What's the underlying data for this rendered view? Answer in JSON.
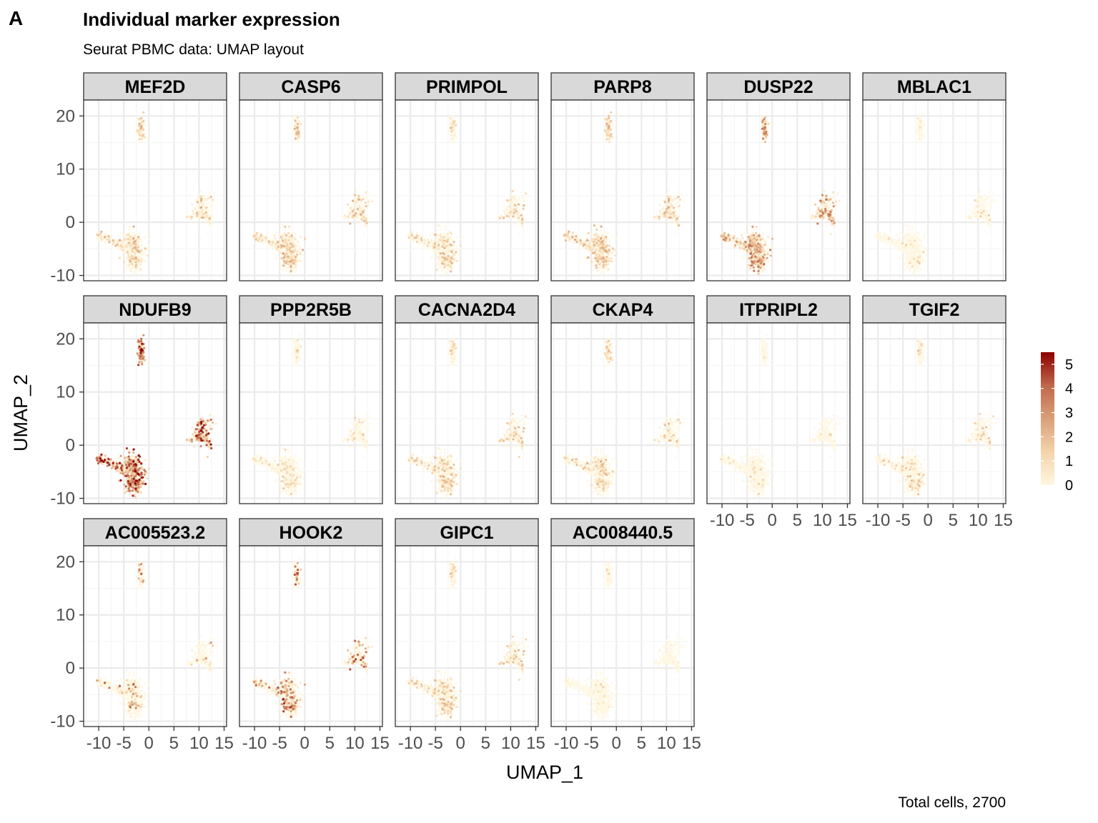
{
  "figure": {
    "tag": "A",
    "caption": "Total cells, 2700"
  },
  "chart_data": {
    "type": "scatter",
    "title": "Individual marker expression",
    "subtitle": "Seurat PBMC data: UMAP layout",
    "xlabel": "UMAP_1",
    "ylabel": "UMAP_2",
    "xlim": [
      -13,
      15.5
    ],
    "ylim": [
      -11,
      23
    ],
    "x_ticks": [
      -10,
      -5,
      0,
      5,
      10,
      15
    ],
    "x_tick_labels": [
      "-10",
      "-5",
      "0",
      "5",
      "10",
      "15"
    ],
    "y_ticks": [
      -10,
      0,
      10,
      20
    ],
    "y_tick_labels": [
      "-10",
      "0",
      "10",
      "20"
    ],
    "grid": true,
    "facet_columns": 6,
    "colorbar": {
      "range": [
        0,
        5.5
      ],
      "ticks": [
        0,
        1,
        2,
        3,
        4,
        5
      ],
      "tick_labels": [
        "0",
        "1",
        "2",
        "3",
        "4",
        "5"
      ],
      "colors": [
        "#fff7e1",
        "#f4d3ab",
        "#d9a078",
        "#c0674a",
        "#8b0000"
      ],
      "placement": "right"
    },
    "facets": [
      {
        "gene": "MEF2D",
        "level": 0.32,
        "max": 2.3
      },
      {
        "gene": "CASP6",
        "level": 0.38,
        "max": 2.3
      },
      {
        "gene": "PRIMPOL",
        "level": 0.26,
        "max": 2.1
      },
      {
        "gene": "PARP8",
        "level": 0.45,
        "max": 2.4
      },
      {
        "gene": "DUSP22",
        "level": 0.55,
        "max": 3.8
      },
      {
        "gene": "MBLAC1",
        "level": 0.06,
        "max": 1.5
      },
      {
        "gene": "NDUFB9",
        "level": 0.92,
        "max": 5.5
      },
      {
        "gene": "PPP2R5B",
        "level": 0.14,
        "max": 1.6
      },
      {
        "gene": "CACNA2D4",
        "level": 0.3,
        "max": 2.1
      },
      {
        "gene": "CKAP4",
        "level": 0.22,
        "max": 2.1
      },
      {
        "gene": "ITPRIPL2",
        "level": 0.05,
        "max": 1.5
      },
      {
        "gene": "TGIF2",
        "level": 0.16,
        "max": 1.9
      },
      {
        "gene": "AC005523.2",
        "level": 0.1,
        "max": 4.2
      },
      {
        "gene": "HOOK2",
        "level": 0.3,
        "max": 4.8
      },
      {
        "gene": "GIPC1",
        "level": 0.3,
        "max": 2.1
      },
      {
        "gene": "AC008440.5",
        "level": 0.03,
        "max": 1.3
      }
    ]
  }
}
